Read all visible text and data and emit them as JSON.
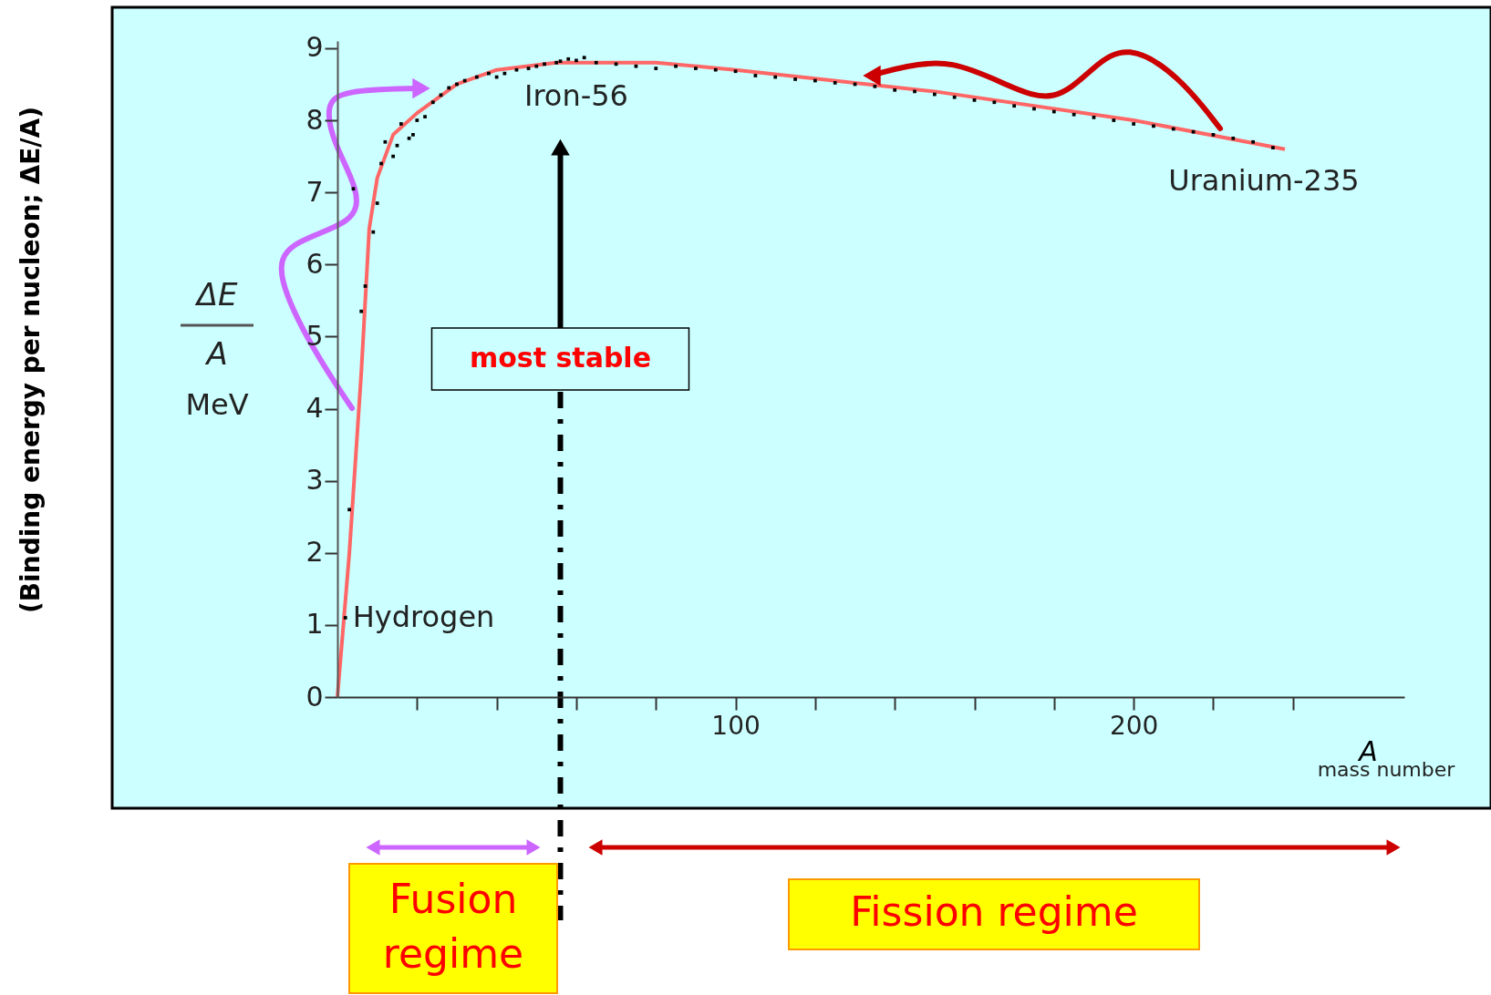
{
  "chart_data": {
    "type": "line",
    "xlabel": "A",
    "xlim": [
      0,
      268
    ],
    "ylim": [
      0,
      9.1
    ],
    "xticks": [
      {
        "value": 20,
        "label": null
      },
      {
        "value": 40,
        "label": null
      },
      {
        "value": 60,
        "label": null
      },
      {
        "value": 80,
        "label": null
      },
      100,
      {
        "value": 120,
        "label": null
      },
      {
        "value": 140,
        "label": null
      },
      {
        "value": 160,
        "label": null
      },
      {
        "value": 180,
        "label": null
      },
      200,
      {
        "value": 220,
        "label": null
      },
      {
        "value": 240,
        "label": null
      }
    ],
    "yticks": [
      0,
      1,
      2,
      3,
      4,
      5,
      6,
      7,
      8,
      9
    ],
    "grid": false,
    "series": [
      {
        "color": "#ff6666",
        "x": [
          0,
          3,
          6,
          8,
          10,
          14,
          20,
          30,
          40,
          55,
          80,
          100,
          150,
          200,
          238
        ],
        "values": [
          0,
          2,
          4.5,
          6.5,
          7.2,
          7.8,
          8.1,
          8.5,
          8.7,
          8.8,
          8.8,
          8.7,
          8.4,
          8.0,
          7.6
        ]
      },
      {
        "type": "scatter",
        "color": "#000000",
        "marker": "square",
        "x": [
          2,
          3,
          4,
          6,
          7,
          9,
          10,
          11,
          12,
          14,
          15,
          16,
          18,
          19,
          20,
          22,
          24,
          26,
          28,
          30,
          32,
          35,
          38,
          40,
          42,
          45,
          48,
          50,
          52,
          55,
          56,
          58,
          60,
          62,
          65,
          70,
          75,
          80,
          85,
          90,
          95,
          100,
          105,
          110,
          115,
          120,
          125,
          130,
          135,
          140,
          145,
          150,
          155,
          160,
          165,
          170,
          175,
          180,
          185,
          190,
          195,
          200,
          205,
          210,
          215,
          220,
          225,
          230,
          235
        ],
        "values": [
          1.1,
          2.6,
          7.05,
          5.35,
          5.7,
          6.45,
          6.85,
          7.4,
          7.7,
          7.5,
          7.65,
          7.95,
          7.75,
          7.8,
          8.0,
          8.05,
          8.25,
          8.35,
          8.45,
          8.5,
          8.55,
          8.6,
          8.65,
          8.6,
          8.65,
          8.7,
          8.72,
          8.75,
          8.78,
          8.8,
          8.82,
          8.85,
          8.83,
          8.87,
          8.8,
          8.78,
          8.75,
          8.72,
          8.75,
          8.72,
          8.7,
          8.68,
          8.62,
          8.6,
          8.57,
          8.55,
          8.52,
          8.5,
          8.47,
          8.42,
          8.4,
          8.36,
          8.32,
          8.28,
          8.25,
          8.2,
          8.16,
          8.12,
          8.08,
          8.04,
          8.0,
          7.95,
          7.92,
          7.88,
          7.84,
          7.8,
          7.75,
          7.7,
          7.62
        ]
      }
    ],
    "ref_lines": [
      {
        "axis": "x",
        "value": 56,
        "label": "most stable",
        "color": "#000000",
        "line_style": "dashed"
      }
    ],
    "annotations": [
      {
        "text": "Hydrogen",
        "x": 2,
        "y": 1.1
      },
      {
        "text": "Uranium-235",
        "x": 235,
        "y": 7.62
      },
      "Iron-56",
      "ΔE",
      "A",
      "MeV",
      "mass number",
      "Fusion regime",
      "Fission regime",
      "(Binding energy per nucleon; ΔE/A)"
    ]
  }
}
